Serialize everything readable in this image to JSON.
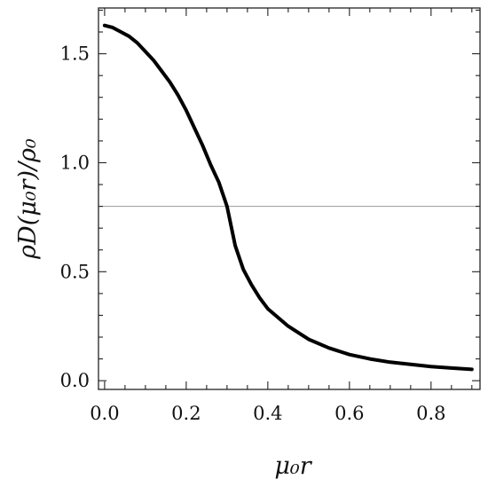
{
  "chart_data": {
    "type": "line",
    "title": "",
    "xlabel": "μ₀r",
    "ylabel": "ρD(μ₀r)/ρ₀",
    "xlim": [
      -0.015,
      0.92
    ],
    "ylim": [
      -0.04,
      1.71
    ],
    "x_ticks": [
      0.0,
      0.2,
      0.4,
      0.6,
      0.8
    ],
    "x_tick_labels": [
      "0.0",
      "0.2",
      "0.4",
      "0.6",
      "0.8"
    ],
    "y_ticks": [
      0.0,
      0.5,
      1.0,
      1.5
    ],
    "y_tick_labels": [
      "0.0",
      "0.5",
      "1.0",
      "1.5"
    ],
    "grid": false,
    "reference_line": {
      "y": 0.8
    },
    "series": [
      {
        "x": [
          0.0,
          0.02,
          0.04,
          0.06,
          0.08,
          0.1,
          0.12,
          0.14,
          0.16,
          0.18,
          0.2,
          0.22,
          0.24,
          0.26,
          0.28,
          0.3,
          0.32,
          0.34,
          0.36,
          0.38,
          0.4,
          0.45,
          0.5,
          0.55,
          0.6,
          0.65,
          0.7,
          0.75,
          0.8,
          0.85,
          0.9
        ],
        "y": [
          1.63,
          1.62,
          1.6,
          1.58,
          1.55,
          1.51,
          1.47,
          1.42,
          1.37,
          1.31,
          1.24,
          1.16,
          1.08,
          0.99,
          0.91,
          0.8,
          0.62,
          0.51,
          0.44,
          0.38,
          0.33,
          0.25,
          0.19,
          0.15,
          0.12,
          0.1,
          0.085,
          0.075,
          0.065,
          0.058,
          0.052
        ]
      }
    ]
  }
}
